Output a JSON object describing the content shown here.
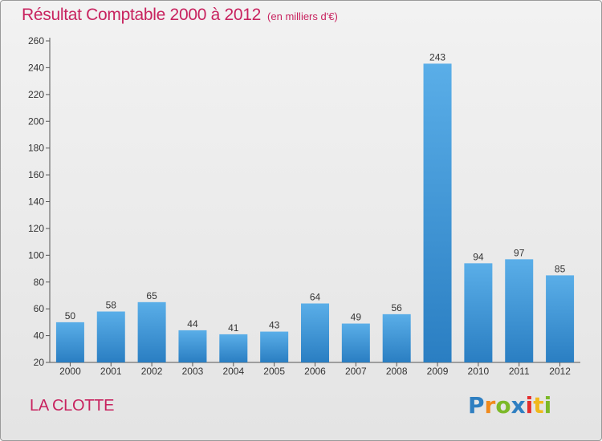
{
  "header": {
    "title": "Résultat Comptable 2000 à 2012",
    "subtitle": "(en milliers d'€)"
  },
  "footer": {
    "commune": "LA CLOTTE",
    "logo_letters": [
      {
        "ch": "P",
        "color": "#2f7fc1"
      },
      {
        "ch": "r",
        "color": "#f08a1c"
      },
      {
        "ch": "o",
        "color": "#7cb928"
      },
      {
        "ch": "x",
        "color": "#2f7fc1"
      },
      {
        "ch": "i",
        "color": "#e52d2d"
      },
      {
        "ch": "t",
        "color": "#f0b81c"
      },
      {
        "ch": "i",
        "color": "#7cb928"
      }
    ]
  },
  "colors": {
    "bar_top": "#5aaee8",
    "bar_bottom": "#2a7ec2",
    "title": "#c8235f",
    "axis": "#555555"
  },
  "chart_data": {
    "type": "bar",
    "title": "Résultat Comptable 2000 à 2012",
    "xlabel": "",
    "ylabel": "",
    "categories": [
      "2000",
      "2001",
      "2002",
      "2003",
      "2004",
      "2005",
      "2006",
      "2007",
      "2008",
      "2009",
      "2010",
      "2011",
      "2012"
    ],
    "values": [
      50,
      58,
      65,
      44,
      41,
      43,
      64,
      49,
      56,
      243,
      94,
      97,
      85
    ],
    "ylim": [
      20,
      260
    ],
    "yticks": [
      20,
      40,
      60,
      80,
      100,
      120,
      140,
      160,
      180,
      200,
      220,
      240,
      260
    ],
    "grid": false,
    "data_labels": true
  }
}
